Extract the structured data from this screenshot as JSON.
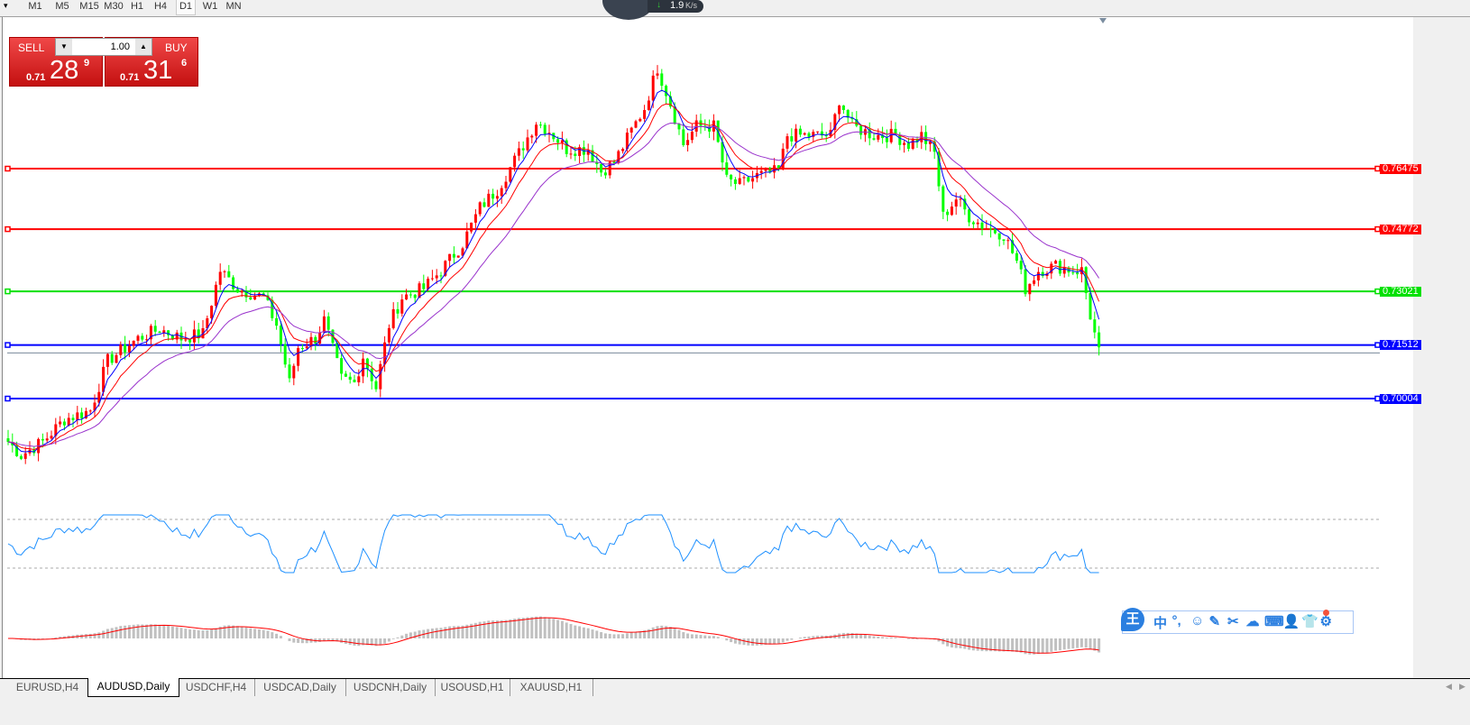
{
  "toolbar": {
    "timeframes": [
      "M1",
      "M5",
      "M15",
      "M30",
      "H1",
      "H4",
      "D1",
      "W1",
      "MN"
    ],
    "active": "D1"
  },
  "net_widget": {
    "speed": "1.9",
    "unit": "K/s"
  },
  "trade_panel": {
    "sell_label": "SELL",
    "buy_label": "BUY",
    "volume": "1.00",
    "sell_prefix": "0.71",
    "sell_big": "28",
    "sell_sup": "9",
    "buy_prefix": "0.71",
    "buy_big": "31",
    "buy_sup": "6"
  },
  "levels": [
    {
      "price": "0.76475",
      "color": "#ff0000"
    },
    {
      "price": "0.74772",
      "color": "#ff0000"
    },
    {
      "price": "0.73021",
      "color": "#00e000"
    },
    {
      "price": "0.71512",
      "color": "#0000ff"
    },
    {
      "price": "0.70004",
      "color": "#0000ff"
    }
  ],
  "bid_line_price": 0.7129,
  "colors": {
    "bull": "#ff0000",
    "bear": "#00ff00",
    "ma_fast": "#0000ff",
    "ma_mid": "#ff0000",
    "ma_slow": "#9932cc",
    "rsi": "#1e90ff",
    "macd_hist": "#c0c0c0",
    "macd_signal": "#ff0000"
  },
  "price_path": [
    [
      0,
      0.6879
    ],
    [
      3,
      0.6841
    ],
    [
      8,
      0.6879
    ],
    [
      13,
      0.6942
    ],
    [
      19,
      0.6967
    ],
    [
      23,
      0.7107
    ],
    [
      30,
      0.717
    ],
    [
      35,
      0.7196
    ],
    [
      40,
      0.717
    ],
    [
      45,
      0.7183
    ],
    [
      49,
      0.7361
    ],
    [
      53,
      0.731
    ],
    [
      59,
      0.7285
    ],
    [
      62,
      0.7208
    ],
    [
      65,
      0.7044
    ],
    [
      67,
      0.7145
    ],
    [
      71,
      0.717
    ],
    [
      73,
      0.7221
    ],
    [
      77,
      0.7056
    ],
    [
      80,
      0.7044
    ],
    [
      82,
      0.712
    ],
    [
      85,
      0.7031
    ],
    [
      88,
      0.7208
    ],
    [
      91,
      0.7285
    ],
    [
      96,
      0.731
    ],
    [
      100,
      0.7361
    ],
    [
      105,
      0.7437
    ],
    [
      109,
      0.7538
    ],
    [
      113,
      0.7589
    ],
    [
      118,
      0.7691
    ],
    [
      122,
      0.778
    ],
    [
      125,
      0.7754
    ],
    [
      129,
      0.7703
    ],
    [
      134,
      0.7703
    ],
    [
      137,
      0.764
    ],
    [
      140,
      0.7665
    ],
    [
      144,
      0.7754
    ],
    [
      147,
      0.7818
    ],
    [
      150,
      0.7932
    ],
    [
      153,
      0.783
    ],
    [
      156,
      0.7716
    ],
    [
      159,
      0.7767
    ],
    [
      163,
      0.7767
    ],
    [
      166,
      0.7614
    ],
    [
      169,
      0.7602
    ],
    [
      173,
      0.7627
    ],
    [
      178,
      0.764
    ],
    [
      180,
      0.7741
    ],
    [
      186,
      0.7741
    ],
    [
      190,
      0.7741
    ],
    [
      192,
      0.7843
    ],
    [
      195,
      0.7767
    ],
    [
      200,
      0.7741
    ],
    [
      205,
      0.7741
    ],
    [
      208,
      0.7716
    ],
    [
      211,
      0.7741
    ],
    [
      214,
      0.7691
    ],
    [
      216,
      0.7513
    ],
    [
      219,
      0.7564
    ],
    [
      222,
      0.7513
    ],
    [
      225,
      0.7488
    ],
    [
      230,
      0.7462
    ],
    [
      233,
      0.7386
    ],
    [
      235,
      0.731
    ],
    [
      238,
      0.7361
    ],
    [
      242,
      0.7374
    ],
    [
      246,
      0.7361
    ],
    [
      248,
      0.7361
    ],
    [
      250,
      0.7234
    ],
    [
      252,
      0.7129
    ]
  ],
  "tabs": [
    {
      "label": "EURUSD,H4"
    },
    {
      "label": "AUDUSD,Daily",
      "active": true
    },
    {
      "label": "USDCHF,H4"
    },
    {
      "label": "USDCAD,Daily"
    },
    {
      "label": "USDCNH,Daily"
    },
    {
      "label": "USOUSD,H1"
    },
    {
      "label": "XAUUSD,H1"
    }
  ],
  "ime": {
    "logo": "王",
    "items": [
      "中",
      "°,",
      "☺",
      "✎",
      "✂",
      "☁",
      "⌨",
      "👤",
      "👕",
      "⚙"
    ]
  }
}
